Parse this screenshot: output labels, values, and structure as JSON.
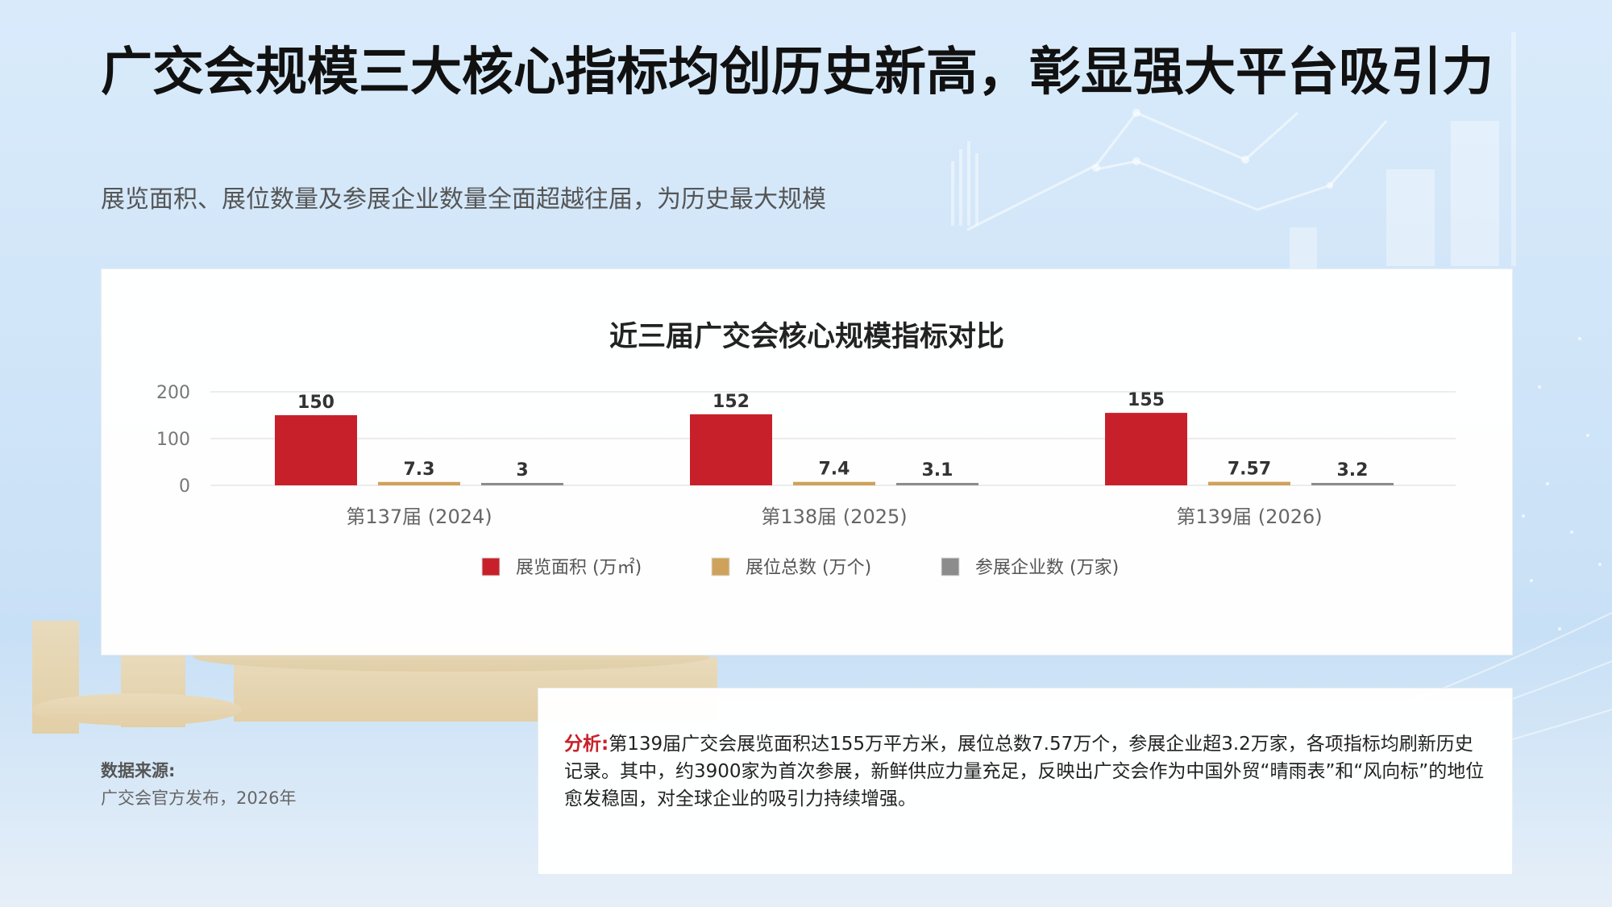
{
  "page": {
    "title": "广交会规模三大核心指标均创历史新高，彰显强大平台吸引力",
    "subtitle": "展览面积、展位数量及参展企业数量全面超越往届，为历史最大规模"
  },
  "chart_data": {
    "type": "bar",
    "title": "近三届广交会核心规模指标对比",
    "categories": [
      "第137届 (2024)",
      "第138届 (2025)",
      "第139届 (2026)"
    ],
    "series": [
      {
        "name": "展览面积 (万㎡)",
        "values": [
          150,
          152,
          155
        ],
        "labels": [
          "150",
          "152",
          "155"
        ],
        "color": "#c8202a"
      },
      {
        "name": "展位总数 (万个)",
        "values": [
          7.3,
          7.4,
          7.57
        ],
        "labels": [
          "7.3",
          "7.4",
          "7.57"
        ],
        "color": "#cfa25b"
      },
      {
        "name": "参展企业数 (万家)",
        "values": [
          3,
          3.1,
          3.2
        ],
        "labels": [
          "3",
          "3.1",
          "3.2"
        ],
        "color": "#8c8c8c"
      }
    ],
    "ylim": [
      0,
      200
    ],
    "yticks": [
      0,
      100,
      200
    ],
    "grid": true,
    "legend": "bottom"
  },
  "source": {
    "label": "数据来源:",
    "text": "广交会官方发布，2026年"
  },
  "analysis": {
    "label": "分析:",
    "text": "第139届广交会展览面积达155万平方米，展位总数7.57万个，参展企业超3.2万家，各项指标均刷新历史记录。其中，约3900家为首次参展，新鲜供应力量充足，反映出广交会作为中国外贸“晴雨表”和“风向标”的地位愈发稳固，对全球企业的吸引力持续增强。"
  }
}
